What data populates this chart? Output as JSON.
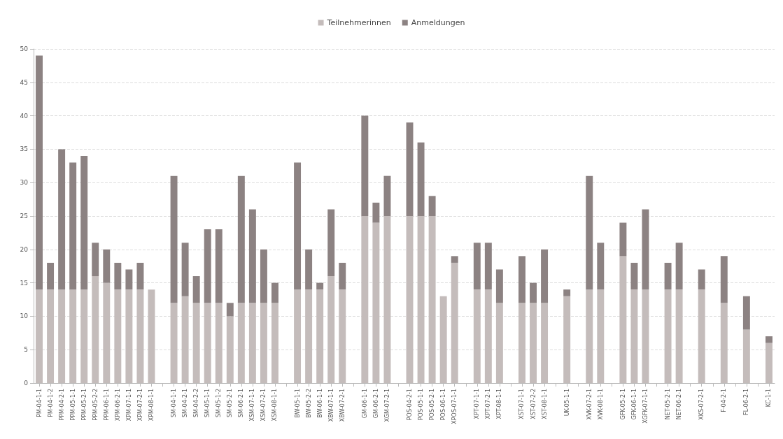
{
  "chart_data": {
    "type": "bar",
    "stacked": true,
    "categories": [
      "PM-04-1-1",
      "PM-04-1-2",
      "PPM-04-2-1",
      "PPM-05-1-1",
      "PPM-05-2-1",
      "PPM-05-2-2",
      "PPM-06-1-1",
      "XPM-06-2-1",
      "XPM-07-1-1",
      "XPM-07-2-1",
      "XPM-08-1-1",
      null,
      "SM-04-1-1",
      "SM-04-2-1",
      "SM-04-2-2",
      "SM-05-1-1",
      "SM-05-1-2",
      "SM-05-2-1",
      "SM-06-2-1",
      "XSM-07-1-1",
      "XSM-07-2-1",
      "XSM-08-1-1",
      null,
      "BW-05-1-1",
      "BW-05-2-2",
      "BW-06-1-1",
      "XBW-07-1-1",
      "XBW-07-2-1",
      null,
      "GM-06-1-1",
      "GM-06-2-1",
      "XGM-07-2-1",
      null,
      "POS-04-2-1",
      "POS-05-1-1",
      "POS-05-2-1",
      "POS-06-1-1",
      "XPOS-07-1-1",
      null,
      "XPT-07-1-1",
      "XPT-07-2-1",
      "XPT-08-1-1",
      null,
      "XST-07-1-1",
      "XST-07-2-2",
      "XST-08-1-1",
      null,
      "UK-05-1-1",
      null,
      "XVK-07-2-1",
      "XVK-08-1-1",
      null,
      "GFK-05-2-1",
      "GFK-06-1-1",
      "XGFK-07-1-1",
      null,
      "NET-05-2-1",
      "NET-06-2-1",
      null,
      "XKS-07-2-1",
      null,
      "F-04-2-1",
      null,
      "FL-06-2-1",
      null,
      "KC-1-1"
    ],
    "series": [
      {
        "name": "Teilnehmerinnen",
        "color": "#c4bcbb",
        "values": [
          14,
          14,
          14,
          14,
          14,
          16,
          15,
          14,
          14,
          14,
          14,
          null,
          12,
          13,
          12,
          12,
          12,
          10,
          12,
          12,
          12,
          12,
          null,
          14,
          14,
          14,
          16,
          14,
          null,
          25,
          24,
          25,
          null,
          25,
          25,
          25,
          13,
          18,
          null,
          14,
          14,
          12,
          null,
          12,
          12,
          12,
          null,
          13,
          null,
          14,
          14,
          null,
          19,
          14,
          14,
          null,
          14,
          14,
          null,
          14,
          null,
          12,
          null,
          8,
          null,
          6
        ]
      },
      {
        "name": "Anmeldungen",
        "color": "#8c8282",
        "values": [
          35,
          4,
          21,
          19,
          20,
          5,
          5,
          4,
          3,
          4,
          0,
          null,
          19,
          8,
          4,
          11,
          11,
          2,
          19,
          14,
          8,
          3,
          null,
          19,
          6,
          1,
          10,
          4,
          null,
          15,
          3,
          6,
          null,
          14,
          11,
          3,
          0,
          1,
          null,
          7,
          7,
          5,
          null,
          7,
          3,
          8,
          null,
          1,
          null,
          17,
          7,
          null,
          5,
          4,
          12,
          null,
          4,
          7,
          null,
          3,
          null,
          7,
          null,
          5,
          null,
          1
        ]
      }
    ],
    "ylim": [
      0,
      50
    ],
    "yticks": [
      0,
      5,
      10,
      15,
      20,
      25,
      30,
      35,
      40,
      45,
      50
    ],
    "grid": "y",
    "legend": "top"
  }
}
